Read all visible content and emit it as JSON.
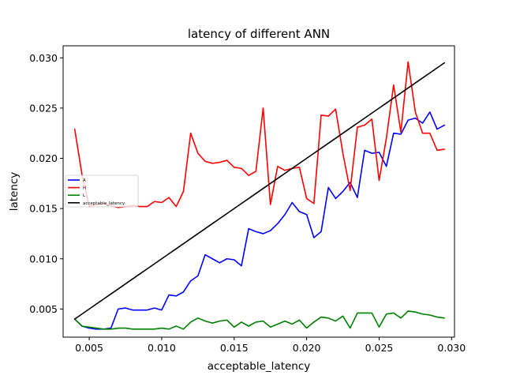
{
  "chart_data": {
    "type": "line",
    "title": "latency of different ANN",
    "xlabel": "acceptable_latency",
    "ylabel": "latency",
    "xlim": [
      0.0032,
      0.0302
    ],
    "ylim": [
      0.0022,
      0.0312
    ],
    "xticks": [
      0.005,
      0.01,
      0.015,
      0.02,
      0.025,
      0.03
    ],
    "xtick_labels": [
      "0.005",
      "0.010",
      "0.015",
      "0.020",
      "0.025",
      "0.030"
    ],
    "yticks": [
      0.005,
      0.01,
      0.015,
      0.02,
      0.025,
      0.03
    ],
    "ytick_labels": [
      "0.005",
      "0.010",
      "0.015",
      "0.020",
      "0.025",
      "0.030"
    ],
    "grid": false,
    "legend_position": "center-left",
    "x": [
      0.004,
      0.0045,
      0.005,
      0.0055,
      0.006,
      0.0065,
      0.007,
      0.0075,
      0.008,
      0.0085,
      0.009,
      0.0095,
      0.01,
      0.0105,
      0.011,
      0.0115,
      0.012,
      0.0125,
      0.013,
      0.0135,
      0.014,
      0.0145,
      0.015,
      0.0155,
      0.016,
      0.0165,
      0.017,
      0.0175,
      0.018,
      0.0185,
      0.019,
      0.0195,
      0.02,
      0.0205,
      0.021,
      0.0215,
      0.022,
      0.0225,
      0.023,
      0.0235,
      0.024,
      0.0245,
      0.025,
      0.0255,
      0.026,
      0.0265,
      0.027,
      0.0275,
      0.028,
      0.0285,
      0.029,
      0.0295
    ],
    "series": [
      {
        "name": "A",
        "color": "#0000ff",
        "values": [
          0.004,
          0.0033,
          0.0031,
          0.003,
          0.003,
          0.0031,
          0.005,
          0.0051,
          0.0049,
          0.0049,
          0.0049,
          0.0051,
          0.0049,
          0.0064,
          0.0063,
          0.0067,
          0.0078,
          0.0083,
          0.0104,
          0.01,
          0.0096,
          0.01,
          0.0099,
          0.0093,
          0.013,
          0.0127,
          0.0125,
          0.0128,
          0.0135,
          0.0144,
          0.0156,
          0.0147,
          0.0144,
          0.0121,
          0.0127,
          0.0171,
          0.016,
          0.0167,
          0.0176,
          0.0161,
          0.0208,
          0.0205,
          0.0206,
          0.0192,
          0.0225,
          0.0224,
          0.0238,
          0.024,
          0.0235,
          0.0246,
          0.0229,
          0.0233
        ]
      },
      {
        "name": "H",
        "color": "#ff0000",
        "values": [
          0.0229,
          0.0184,
          0.0152,
          0.0154,
          0.0155,
          0.0153,
          0.0151,
          0.0152,
          0.0153,
          0.0152,
          0.0152,
          0.0157,
          0.0156,
          0.0161,
          0.0152,
          0.0167,
          0.0225,
          0.0205,
          0.0197,
          0.0195,
          0.0196,
          0.0198,
          0.0191,
          0.019,
          0.0183,
          0.0187,
          0.025,
          0.0154,
          0.0192,
          0.0188,
          0.019,
          0.0191,
          0.016,
          0.0155,
          0.0243,
          0.0242,
          0.0249,
          0.0205,
          0.0168,
          0.0231,
          0.0233,
          0.0239,
          0.0178,
          0.022,
          0.0273,
          0.0226,
          0.0296,
          0.0246,
          0.0225,
          0.0225,
          0.0208,
          0.0209
        ]
      },
      {
        "name": "L",
        "color": "#008000",
        "values": [
          0.004,
          0.0033,
          0.0032,
          0.0031,
          0.003,
          0.003,
          0.0031,
          0.0031,
          0.003,
          0.003,
          0.003,
          0.003,
          0.0031,
          0.003,
          0.0033,
          0.003,
          0.0037,
          0.0041,
          0.0038,
          0.0036,
          0.0038,
          0.0039,
          0.0032,
          0.0037,
          0.0033,
          0.0037,
          0.0038,
          0.0032,
          0.0035,
          0.0038,
          0.0035,
          0.0039,
          0.0031,
          0.0037,
          0.0042,
          0.0041,
          0.0038,
          0.0043,
          0.0031,
          0.0046,
          0.0046,
          0.0046,
          0.0032,
          0.0045,
          0.0046,
          0.0041,
          0.0048,
          0.0047,
          0.0045,
          0.0044,
          0.0042,
          0.0041
        ]
      },
      {
        "name": "acceptable_latency",
        "color": "#000000",
        "values": [
          0.004,
          0.0045,
          0.005,
          0.0055,
          0.006,
          0.0065,
          0.007,
          0.0075,
          0.008,
          0.0085,
          0.009,
          0.0095,
          0.01,
          0.0105,
          0.011,
          0.0115,
          0.012,
          0.0125,
          0.013,
          0.0135,
          0.014,
          0.0145,
          0.015,
          0.0155,
          0.016,
          0.0165,
          0.017,
          0.0175,
          0.018,
          0.0185,
          0.019,
          0.0195,
          0.02,
          0.0205,
          0.021,
          0.0215,
          0.022,
          0.0225,
          0.023,
          0.0235,
          0.024,
          0.0245,
          0.025,
          0.0255,
          0.026,
          0.0265,
          0.027,
          0.0275,
          0.028,
          0.0285,
          0.029,
          0.0295
        ]
      }
    ]
  }
}
